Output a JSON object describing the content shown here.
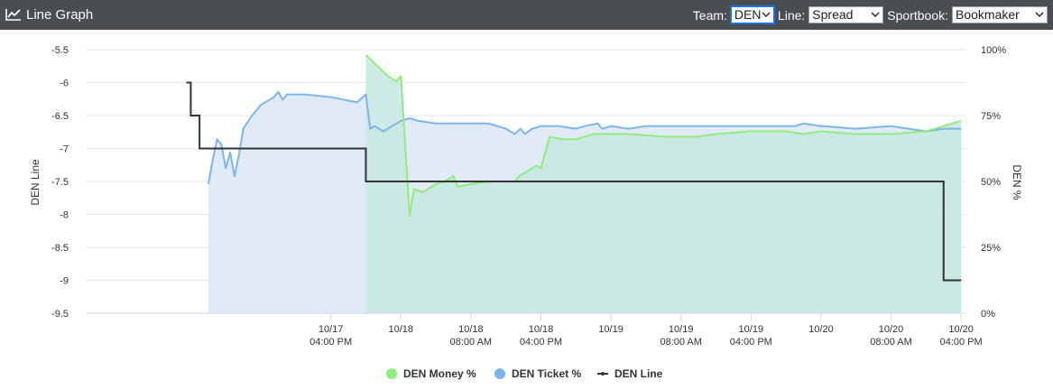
{
  "header": {
    "title": "Line Graph",
    "icon": "line-chart-icon",
    "team_label": "Team:",
    "team_value": "DEN",
    "line_label": "Line:",
    "line_value": "Spread",
    "sportbook_label": "Sportbook:",
    "sportbook_value": "Bookmaker"
  },
  "chart_data": {
    "type": "line",
    "xlabel": "",
    "ylabel_left": "DEN Line",
    "ylabel_right": "DEN %",
    "ylim_left": [
      -9.5,
      -5.5
    ],
    "yticks_left": [
      -5.5,
      -6,
      -6.5,
      -7,
      -7.5,
      -8,
      -8.5,
      -9,
      -9.5
    ],
    "ytick_labels_left": [
      "-5.5",
      "-6",
      "-6.5",
      "-7",
      "-7.5",
      "-8",
      "-8.5",
      "-9",
      "-9.5"
    ],
    "ylim_right": [
      0,
      100
    ],
    "yticks_right": [
      100,
      75,
      50,
      25,
      0
    ],
    "ytick_labels_right": [
      "100%",
      "75%",
      "50%",
      "25%",
      "0%"
    ],
    "xlim": [
      "10/16 12:00",
      "10/20 16:30"
    ],
    "xticks": [
      {
        "x": "10/17 16:00",
        "date": "10/17",
        "time": "04:00 PM"
      },
      {
        "x": "10/18 00:00",
        "date": "10/18",
        "time": ""
      },
      {
        "x": "10/18 08:00",
        "date": "10/18",
        "time": "08:00 AM"
      },
      {
        "x": "10/18 16:00",
        "date": "10/18",
        "time": "04:00 PM"
      },
      {
        "x": "10/19 00:00",
        "date": "10/19",
        "time": ""
      },
      {
        "x": "10/19 08:00",
        "date": "10/19",
        "time": "08:00 AM"
      },
      {
        "x": "10/19 16:00",
        "date": "10/19",
        "time": "04:00 PM"
      },
      {
        "x": "10/20 00:00",
        "date": "10/20",
        "time": ""
      },
      {
        "x": "10/20 08:00",
        "date": "10/20",
        "time": "08:00 AM"
      },
      {
        "x": "10/20 16:00",
        "date": "10/20",
        "time": "04:00 PM"
      }
    ],
    "grid": true,
    "legend_position": "bottom",
    "legend": [
      "DEN Money %",
      "DEN Ticket %",
      "DEN Line"
    ],
    "series": [
      {
        "name": "DEN Ticket %",
        "axis": "right",
        "color": "#7cb5ec",
        "fill": "#dce8f7",
        "points": [
          [
            "10/17 02:00",
            49
          ],
          [
            "10/17 02:30",
            58
          ],
          [
            "10/17 03:00",
            66
          ],
          [
            "10/17 03:30",
            64
          ],
          [
            "10/17 04:00",
            55
          ],
          [
            "10/17 04:30",
            61
          ],
          [
            "10/17 05:00",
            52
          ],
          [
            "10/17 05:30",
            60
          ],
          [
            "10/17 06:00",
            70
          ],
          [
            "10/17 07:00",
            75
          ],
          [
            "10/17 08:00",
            79
          ],
          [
            "10/17 09:30",
            82
          ],
          [
            "10/17 10:00",
            84
          ],
          [
            "10/17 10:30",
            81
          ],
          [
            "10/17 11:00",
            83
          ],
          [
            "10/17 13:00",
            83
          ],
          [
            "10/17 16:00",
            82
          ],
          [
            "10/17 19:00",
            80
          ],
          [
            "10/17 20:00",
            83
          ],
          [
            "10/17 20:30",
            70
          ],
          [
            "10/17 21:00",
            71
          ],
          [
            "10/17 22:00",
            69
          ],
          [
            "10/17 23:00",
            71
          ],
          [
            "10/18 00:00",
            73
          ],
          [
            "10/18 01:00",
            74
          ],
          [
            "10/18 02:00",
            73
          ],
          [
            "10/18 04:00",
            72
          ],
          [
            "10/18 10:00",
            72
          ],
          [
            "10/18 12:00",
            70
          ],
          [
            "10/18 13:00",
            68
          ],
          [
            "10/18 13:40",
            70
          ],
          [
            "10/18 14:10",
            68
          ],
          [
            "10/18 15:00",
            70
          ],
          [
            "10/18 16:00",
            71
          ],
          [
            "10/18 18:00",
            71
          ],
          [
            "10/18 20:00",
            70
          ],
          [
            "10/18 21:00",
            71
          ],
          [
            "10/18 22:30",
            72
          ],
          [
            "10/18 23:00",
            70
          ],
          [
            "10/19 00:00",
            71
          ],
          [
            "10/19 02:00",
            70
          ],
          [
            "10/19 04:00",
            71
          ],
          [
            "10/19 08:00",
            71
          ],
          [
            "10/19 12:00",
            71
          ],
          [
            "10/19 16:00",
            71
          ],
          [
            "10/19 19:00",
            71
          ],
          [
            "10/19 21:00",
            71
          ],
          [
            "10/19 22:00",
            72
          ],
          [
            "10/20 00:00",
            71
          ],
          [
            "10/20 04:00",
            70
          ],
          [
            "10/20 08:00",
            71
          ],
          [
            "10/20 10:00",
            70
          ],
          [
            "10/20 12:00",
            69
          ],
          [
            "10/20 14:00",
            70
          ],
          [
            "10/20 16:00",
            70
          ]
        ]
      },
      {
        "name": "DEN Money %",
        "axis": "right",
        "color": "#90ed7d",
        "fill": "#c6e8e0",
        "points": [
          [
            "10/17 20:00",
            98
          ],
          [
            "10/17 22:30",
            90
          ],
          [
            "10/17 23:30",
            88
          ],
          [
            "10/18 00:00",
            90
          ],
          [
            "10/18 01:00",
            37
          ],
          [
            "10/18 01:30",
            47
          ],
          [
            "10/18 02:30",
            46
          ],
          [
            "10/18 04:00",
            49
          ],
          [
            "10/18 05:00",
            50
          ],
          [
            "10/18 06:00",
            52
          ],
          [
            "10/18 06:30",
            48
          ],
          [
            "10/18 08:00",
            49
          ],
          [
            "10/18 10:00",
            50
          ],
          [
            "10/18 12:00",
            50
          ],
          [
            "10/18 13:00",
            50
          ],
          [
            "10/18 13:30",
            52
          ],
          [
            "10/18 14:00",
            53
          ],
          [
            "10/18 15:00",
            55
          ],
          [
            "10/18 15:30",
            56
          ],
          [
            "10/18 16:00",
            55
          ],
          [
            "10/18 17:00",
            67
          ],
          [
            "10/18 18:30",
            66
          ],
          [
            "10/18 20:00",
            66
          ],
          [
            "10/18 21:00",
            67
          ],
          [
            "10/18 22:00",
            68
          ],
          [
            "10/19 02:00",
            68
          ],
          [
            "10/19 06:00",
            67
          ],
          [
            "10/19 10:00",
            67
          ],
          [
            "10/19 12:00",
            68
          ],
          [
            "10/19 16:00",
            69
          ],
          [
            "10/19 20:00",
            69
          ],
          [
            "10/19 22:00",
            68
          ],
          [
            "10/20 00:00",
            69
          ],
          [
            "10/20 04:00",
            68
          ],
          [
            "10/20 08:00",
            68
          ],
          [
            "10/20 12:00",
            69
          ],
          [
            "10/20 14:00",
            71
          ],
          [
            "10/20 15:00",
            72
          ],
          [
            "10/20 16:00",
            73
          ]
        ]
      },
      {
        "name": "DEN Line",
        "axis": "left",
        "color": "#333333",
        "step": true,
        "points": [
          [
            "10/16 23:30",
            -6
          ],
          [
            "10/17 00:00",
            -6.5
          ],
          [
            "10/17 01:00",
            -7
          ],
          [
            "10/17 20:00",
            -7.5
          ],
          [
            "10/20 14:00",
            -9
          ],
          [
            "10/20 16:00",
            -9
          ]
        ]
      }
    ]
  }
}
